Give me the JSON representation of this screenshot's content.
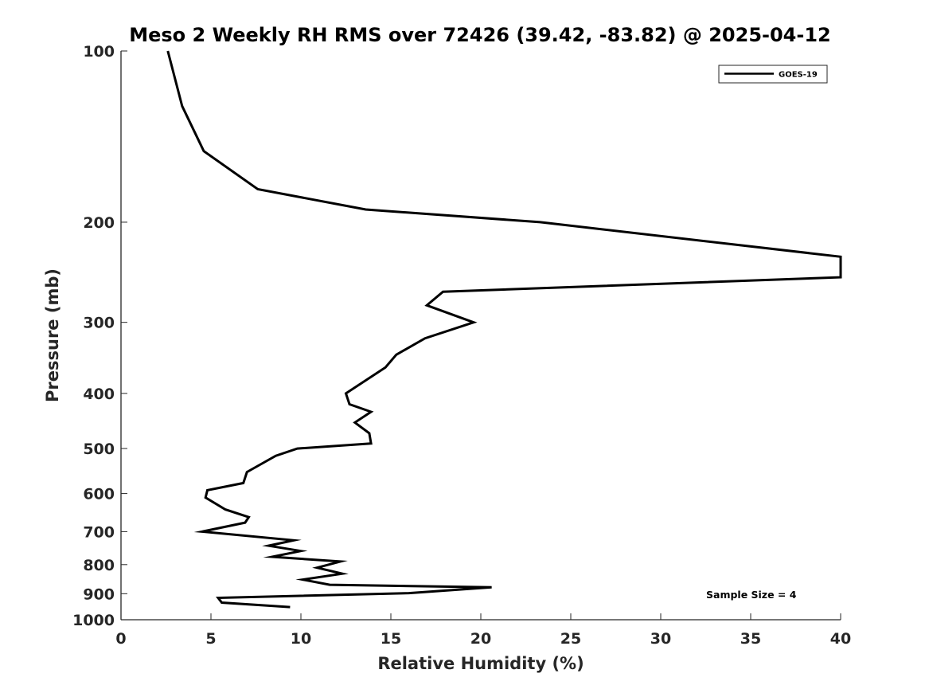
{
  "chart_data": {
    "type": "line",
    "title": "Meso 2 Weekly RH RMS over 72426 (39.42, -83.82) @ 2025-04-12",
    "xlabel": "Relative Humidity (%)",
    "ylabel": "Pressure (mb)",
    "xlim": [
      0,
      40
    ],
    "ylim": [
      100,
      1000
    ],
    "y_scale": "log",
    "y_inverted": true,
    "x_ticks": [
      0,
      5,
      10,
      15,
      20,
      25,
      30,
      35,
      40
    ],
    "y_ticks": [
      100,
      200,
      300,
      400,
      500,
      600,
      700,
      800,
      900,
      1000
    ],
    "grid": false,
    "legend": {
      "position": "top-right",
      "entries": [
        "GOES-19"
      ]
    },
    "annotation": "Sample Size = 4",
    "line_color": "#000000",
    "series": [
      {
        "name": "GOES-19",
        "points": [
          [
            2.6,
            100
          ],
          [
            3.4,
            125
          ],
          [
            4.6,
            150
          ],
          [
            7.6,
            175
          ],
          [
            13.6,
            190
          ],
          [
            23.3,
            200
          ],
          [
            40.0,
            230
          ],
          [
            40.0,
            250
          ],
          [
            17.9,
            265
          ],
          [
            17.0,
            280
          ],
          [
            19.6,
            300
          ],
          [
            16.9,
            320
          ],
          [
            15.3,
            342
          ],
          [
            14.7,
            360
          ],
          [
            12.5,
            400
          ],
          [
            12.7,
            418
          ],
          [
            13.9,
            431
          ],
          [
            13.0,
            450
          ],
          [
            13.8,
            470
          ],
          [
            13.9,
            490
          ],
          [
            9.8,
            500
          ],
          [
            8.6,
            515
          ],
          [
            7.0,
            550
          ],
          [
            6.8,
            575
          ],
          [
            4.8,
            592
          ],
          [
            4.7,
            610
          ],
          [
            5.8,
            640
          ],
          [
            7.1,
            660
          ],
          [
            6.9,
            675
          ],
          [
            4.5,
            700
          ],
          [
            9.6,
            725
          ],
          [
            8.2,
            741
          ],
          [
            10.0,
            757
          ],
          [
            8.4,
            775
          ],
          [
            12.2,
            790
          ],
          [
            10.9,
            810
          ],
          [
            12.3,
            830
          ],
          [
            10.1,
            850
          ],
          [
            11.6,
            868
          ],
          [
            20.6,
            877
          ],
          [
            16.0,
            898
          ],
          [
            5.4,
            915
          ],
          [
            5.6,
            933
          ],
          [
            9.4,
            950
          ]
        ]
      }
    ]
  }
}
